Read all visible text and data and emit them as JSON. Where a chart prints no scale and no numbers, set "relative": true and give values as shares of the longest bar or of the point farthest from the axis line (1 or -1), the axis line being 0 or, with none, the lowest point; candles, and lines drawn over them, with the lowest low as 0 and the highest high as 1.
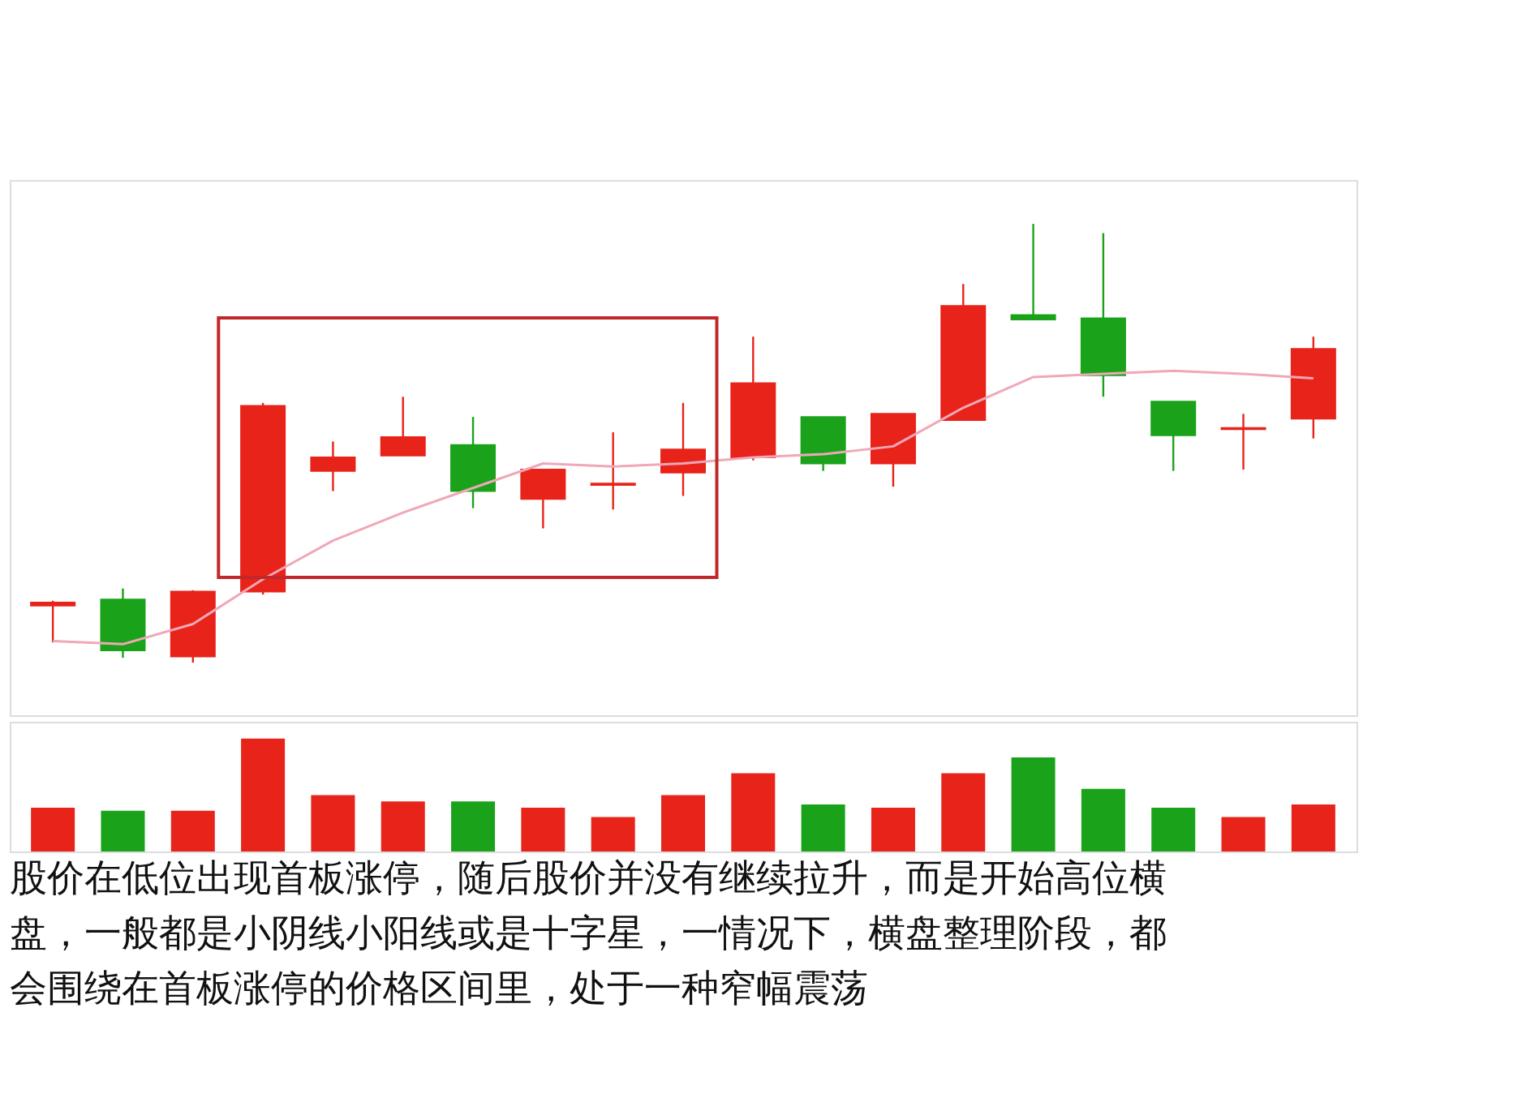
{
  "chart_data": [
    {
      "type": "candlestick",
      "relative": true,
      "categories": [
        null,
        null,
        null,
        null,
        null,
        null,
        null,
        null,
        null,
        null,
        null,
        null,
        null,
        null,
        null,
        null,
        null,
        null,
        null
      ],
      "ohlc": [
        [
          0.13,
          0.141,
          0.046,
          0.137
        ],
        [
          0.144,
          0.169,
          0.011,
          0.028
        ],
        [
          0.014,
          0.165,
          0,
          0.162
        ],
        [
          0.162,
          0.592,
          0.155,
          0.585
        ],
        [
          0.437,
          0.504,
          0.391,
          0.468
        ],
        [
          0.472,
          0.606,
          0.472,
          0.514
        ],
        [
          0.496,
          0.56,
          0.352,
          0.391
        ],
        [
          0.373,
          0.44,
          0.306,
          0.44
        ],
        [
          0.405,
          0.525,
          0.349,
          0.408
        ],
        [
          0.433,
          0.592,
          0.38,
          0.486
        ],
        [
          0.468,
          0.743,
          0.461,
          0.637
        ],
        [
          0.56,
          0.56,
          0.437,
          0.454
        ],
        [
          0.454,
          0.567,
          0.401,
          0.567
        ],
        [
          0.553,
          0.863,
          0.553,
          0.813
        ],
        [
          0.792,
          1,
          0.782,
          0.782
        ],
        [
          0.785,
          0.979,
          0.606,
          0.655
        ],
        [
          0.595,
          0.595,
          0.437,
          0.518
        ],
        [
          0.532,
          0.567,
          0.44,
          0.535
        ],
        [
          0.556,
          0.743,
          0.511,
          0.715
        ]
      ],
      "colors": [
        "#e8231a",
        "#1aa31a",
        "#e8231a",
        "#e8231a",
        "#e8231a",
        "#e8231a",
        "#1aa31a",
        "#e8231a",
        "#e8231a",
        "#e8231a",
        "#e8231a",
        "#1aa31a",
        "#e8231a",
        "#e8231a",
        "#1aa31a",
        "#1aa31a",
        "#1aa31a",
        "#e8231a",
        "#e8231a"
      ],
      "series": [
        {
          "type": "line",
          "color": "#f0a8b8",
          "values": [
            0.049,
            0.042,
            0.088,
            0.19,
            0.278,
            0.342,
            0.398,
            0.454,
            0.447,
            0.454,
            0.468,
            0.475,
            0.493,
            0.581,
            0.651,
            0.658,
            0.665,
            0.658,
            0.648
          ]
        }
      ],
      "grid": false
    },
    {
      "type": "bar",
      "relative": true,
      "categories": [
        null,
        null,
        null,
        null,
        null,
        null,
        null,
        null,
        null,
        null,
        null,
        null,
        null,
        null,
        null,
        null,
        null,
        null,
        null
      ],
      "values": [
        0.389,
        0.361,
        0.361,
        1,
        0.5,
        0.444,
        0.444,
        0.389,
        0.306,
        0.5,
        0.694,
        0.417,
        0.389,
        0.694,
        0.833,
        0.556,
        0.389,
        0.306,
        0.417
      ],
      "colors": [
        "#e8231a",
        "#1aa31a",
        "#e8231a",
        "#e8231a",
        "#e8231a",
        "#e8231a",
        "#1aa31a",
        "#e8231a",
        "#e8231a",
        "#e8231a",
        "#e8231a",
        "#1aa31a",
        "#e8231a",
        "#e8231a",
        "#1aa31a",
        "#1aa31a",
        "#1aa31a",
        "#e8231a",
        "#e8231a"
      ],
      "annotations": [
        "股价在低位出现首板涨停，随后股价并没有继续拉升，而是开始高位横盘，一般都是小阴线小阳线或是十字星，一情况下，横盘整理阶段，都会围绕在首板涨停的价格区间里，处于一种窄幅震荡"
      ],
      "grid": false
    }
  ]
}
